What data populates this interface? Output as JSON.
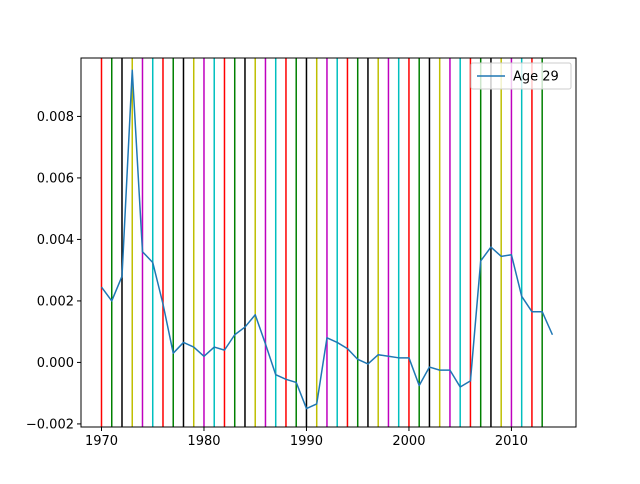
{
  "chart_data": {
    "type": "line",
    "x": [
      1970,
      1971,
      1972,
      1973,
      1974,
      1975,
      1976,
      1977,
      1978,
      1979,
      1980,
      1981,
      1982,
      1983,
      1984,
      1985,
      1986,
      1987,
      1988,
      1989,
      1990,
      1991,
      1992,
      1993,
      1994,
      1995,
      1996,
      1997,
      1998,
      1999,
      2000,
      2001,
      2002,
      2003,
      2004,
      2005,
      2006,
      2007,
      2008,
      2009,
      2010,
      2011,
      2012,
      2013,
      2014
    ],
    "series": [
      {
        "name": "Age 29",
        "color": "#1f77b4",
        "values": [
          0.00245,
          0.002,
          0.0028,
          0.0095,
          0.0036,
          0.00325,
          0.0019,
          0.0003,
          0.00065,
          0.0005,
          0.0002,
          0.0005,
          0.0004,
          0.0009,
          0.00115,
          0.00155,
          0.0006,
          -0.0004,
          -0.00055,
          -0.00065,
          -0.0015,
          -0.00135,
          0.0008,
          0.00065,
          0.00045,
          0.0001,
          -5e-05,
          0.00025,
          0.0002,
          0.00015,
          0.00015,
          -0.00075,
          -0.00015,
          -0.00025,
          -0.00025,
          -0.0008,
          -0.0006,
          0.0033,
          0.00375,
          0.00345,
          0.0035,
          0.00215,
          0.00165,
          0.00165,
          0.0009
        ]
      }
    ],
    "vlines": {
      "years": [
        1970,
        1971,
        1972,
        1973,
        1974,
        1975,
        1976,
        1977,
        1978,
        1979,
        1980,
        1981,
        1982,
        1983,
        1984,
        1985,
        1986,
        1987,
        1988,
        1989,
        1990,
        1991,
        1992,
        1993,
        1994,
        1995,
        1996,
        1997,
        1998,
        1999,
        2000,
        2001,
        2002,
        2003,
        2004,
        2005,
        2006,
        2007,
        2008,
        2009,
        2010,
        2011,
        2012,
        2013
      ],
      "color_cycle": [
        "#ff0000",
        "#008000",
        "#000000",
        "#bfbf00",
        "#bf00bf",
        "#00bfbf"
      ]
    },
    "xlim": [
      1968,
      2016.3
    ],
    "ylim": [
      -0.0021,
      0.0099
    ],
    "x_ticks": [
      1970,
      1980,
      1990,
      2000,
      2010
    ],
    "x_tick_labels": [
      "1970",
      "1980",
      "1990",
      "2000",
      "2010"
    ],
    "y_ticks": [
      -0.002,
      0.0,
      0.002,
      0.004,
      0.006,
      0.008
    ],
    "y_tick_labels": [
      "−0.002",
      "0.000",
      "0.002",
      "0.004",
      "0.006",
      "0.008"
    ],
    "title": "",
    "xlabel": "",
    "ylabel": "",
    "legend": {
      "position": "top-right",
      "entries": [
        "Age 29"
      ]
    },
    "grid": false
  }
}
